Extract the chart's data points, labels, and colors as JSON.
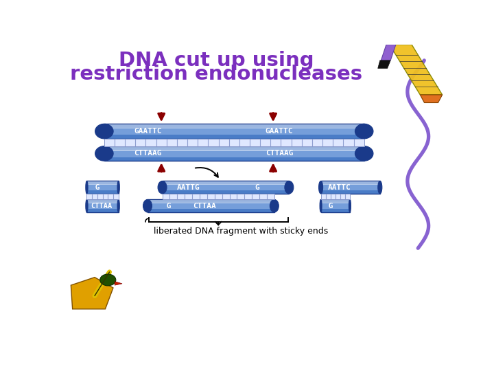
{
  "title_line1": "DNA cut up using",
  "title_line2": "restriction endonucleases",
  "title_color": "#7B2FBE",
  "bg_color": "#FFFFFF",
  "tube_color": "#4A7CC7",
  "tube_dark": "#1A3A8A",
  "tube_light": "#A8C8F0",
  "tube_highlight": "#C8E0FF",
  "ladder_bg": "#E0E8FF",
  "ladder_line": "#8899CC",
  "arrow_color": "#8B0000",
  "bottom_text": "liberated DNA fragment with sticky ends",
  "seq_top": "GAATTC",
  "seq_bot": "CTTAAG",
  "wavy_color": "#7B52CC",
  "black": "#000000",
  "white": "#FFFFFF"
}
